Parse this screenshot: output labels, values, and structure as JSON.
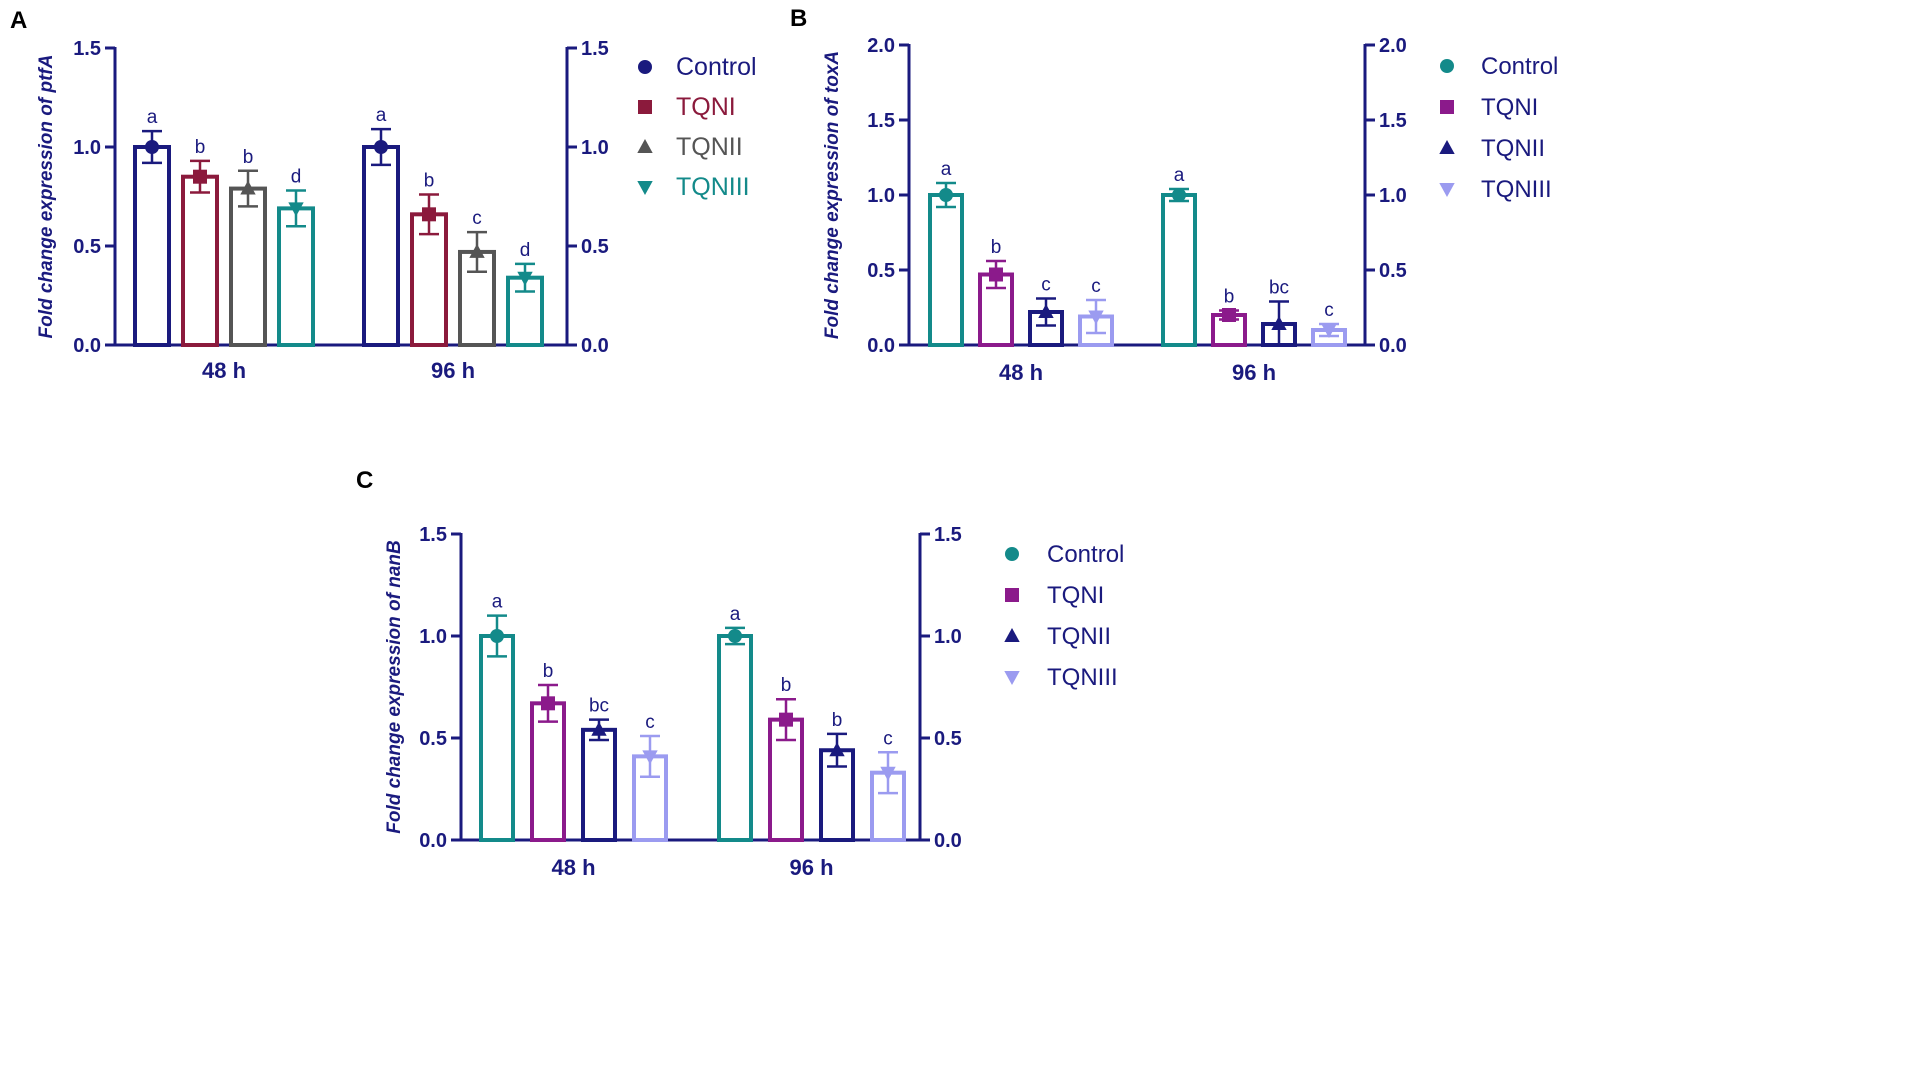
{
  "colors": {
    "axis": "#1a1a7e",
    "navy": "#1a1a7e",
    "maroon": "#8b1a3c",
    "gray": "#555555",
    "teal": "#138a8a",
    "purple": "#8b1a8b",
    "lavender": "#9b9bf0"
  },
  "chart_data": [
    {
      "panel": "A",
      "type": "bar",
      "ylabel_prefix": "Fold change expression of ",
      "ylabel_gene": "ptfA",
      "categories": [
        "48 h",
        "96 h"
      ],
      "ylim": [
        0,
        1.5
      ],
      "yticks": [
        "0.0",
        "0.5",
        "1.0",
        "1.5"
      ],
      "legend_position": "right",
      "legend_colored_text": true,
      "series": [
        {
          "name": "Control",
          "color": "#1a1a7e",
          "marker": "circle",
          "values": [
            1.0,
            1.0
          ],
          "errors": [
            0.08,
            0.09
          ],
          "letters": [
            "a",
            "a"
          ]
        },
        {
          "name": "TQNI",
          "color": "#8b1a3c",
          "marker": "square",
          "values": [
            0.85,
            0.66
          ],
          "errors": [
            0.08,
            0.1
          ],
          "letters": [
            "b",
            "b"
          ]
        },
        {
          "name": "TQNII",
          "color": "#555555",
          "marker": "triangle",
          "values": [
            0.79,
            0.47
          ],
          "errors": [
            0.09,
            0.1
          ],
          "letters": [
            "b",
            "c"
          ]
        },
        {
          "name": "TQNIII",
          "color": "#138a8a",
          "marker": "tri-down",
          "values": [
            0.69,
            0.34
          ],
          "errors": [
            0.09,
            0.07
          ],
          "letters": [
            "d",
            "d"
          ]
        }
      ]
    },
    {
      "panel": "B",
      "type": "bar",
      "ylabel_prefix": "Fold change expression of ",
      "ylabel_gene": "toxA",
      "categories": [
        "48 h",
        "96 h"
      ],
      "ylim": [
        0,
        2.0
      ],
      "yticks": [
        "0.0",
        "0.5",
        "1.0",
        "1.5",
        "2.0"
      ],
      "legend_position": "right",
      "legend_colored_text": false,
      "series": [
        {
          "name": "Control",
          "color": "#138a8a",
          "marker": "circle",
          "values": [
            1.0,
            1.0
          ],
          "errors": [
            0.08,
            0.04
          ],
          "letters": [
            "a",
            "a"
          ]
        },
        {
          "name": "TQNI",
          "color": "#8b1a8b",
          "marker": "square",
          "values": [
            0.47,
            0.2
          ],
          "errors": [
            0.09,
            0.03
          ],
          "letters": [
            "b",
            "b"
          ]
        },
        {
          "name": "TQNII",
          "color": "#1a1a7e",
          "marker": "triangle",
          "values": [
            0.22,
            0.14
          ],
          "errors": [
            0.09,
            0.15
          ],
          "letters": [
            "c",
            "bc"
          ]
        },
        {
          "name": "TQNIII",
          "color": "#9b9bf0",
          "marker": "tri-down",
          "values": [
            0.19,
            0.1
          ],
          "errors": [
            0.11,
            0.04
          ],
          "letters": [
            "c",
            "c"
          ]
        }
      ]
    },
    {
      "panel": "C",
      "type": "bar",
      "ylabel_prefix": "Fold change expression of ",
      "ylabel_gene": "nanB",
      "categories": [
        "48 h",
        "96 h"
      ],
      "ylim": [
        0,
        1.5
      ],
      "yticks": [
        "0.0",
        "0.5",
        "1.0",
        "1.5"
      ],
      "legend_position": "right",
      "legend_colored_text": false,
      "series": [
        {
          "name": "Control",
          "color": "#138a8a",
          "marker": "circle",
          "values": [
            1.0,
            1.0
          ],
          "errors": [
            0.1,
            0.04
          ],
          "letters": [
            "a",
            "a"
          ]
        },
        {
          "name": "TQNI",
          "color": "#8b1a8b",
          "marker": "square",
          "values": [
            0.67,
            0.59
          ],
          "errors": [
            0.09,
            0.1
          ],
          "letters": [
            "b",
            "b"
          ]
        },
        {
          "name": "TQNII",
          "color": "#1a1a7e",
          "marker": "triangle",
          "values": [
            0.54,
            0.44
          ],
          "errors": [
            0.05,
            0.08
          ],
          "letters": [
            "bc",
            "b"
          ]
        },
        {
          "name": "TQNIII",
          "color": "#9b9bf0",
          "marker": "tri-down",
          "values": [
            0.41,
            0.33
          ],
          "errors": [
            0.1,
            0.1
          ],
          "letters": [
            "c",
            "c"
          ]
        }
      ]
    }
  ]
}
